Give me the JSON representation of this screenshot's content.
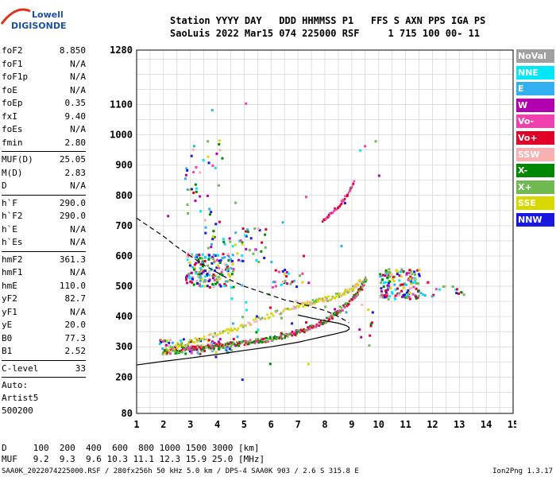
{
  "logo": {
    "line1": "Lowell",
    "line2": "DIGISONDE"
  },
  "header": {
    "line1": "Station YYYY DAY   DDD HHMMSS P1   FFS S AXN PPS IGA PS",
    "line2": "SaoLuis 2022 Mar15 074 225000 RSF     1 715 100 00- 11"
  },
  "params_group1": [
    {
      "label": "foF2",
      "value": "8.850"
    },
    {
      "label": "foF1",
      "value": "N/A"
    },
    {
      "label": "foF1p",
      "value": "N/A"
    },
    {
      "label": "foE",
      "value": "N/A"
    },
    {
      "label": "foEp",
      "value": "0.35"
    },
    {
      "label": "fxI",
      "value": "9.40"
    },
    {
      "label": "foEs",
      "value": "N/A"
    },
    {
      "label": "fmin",
      "value": "2.80"
    }
  ],
  "params_group2": [
    {
      "label": "MUF(D)",
      "value": "25.05"
    },
    {
      "label": "M(D)",
      "value": "2.83"
    },
    {
      "label": "D",
      "value": "N/A"
    }
  ],
  "params_group3": [
    {
      "label": "h`F",
      "value": "290.0"
    },
    {
      "label": "h`F2",
      "value": "290.0"
    },
    {
      "label": "h`E",
      "value": "N/A"
    },
    {
      "label": "h`Es",
      "value": "N/A"
    }
  ],
  "params_group4": [
    {
      "label": "hmF2",
      "value": "361.3"
    },
    {
      "label": "hmF1",
      "value": "N/A"
    },
    {
      "label": "hmE",
      "value": "110.0"
    },
    {
      "label": "yF2",
      "value": "82.7"
    },
    {
      "label": "yF1",
      "value": "N/A"
    },
    {
      "label": "yE",
      "value": "20.0"
    },
    {
      "label": "B0",
      "value": "77.3"
    },
    {
      "label": "B1",
      "value": "2.52"
    }
  ],
  "clevel": {
    "label": "C-level",
    "value": "33"
  },
  "auto_lines": [
    "Auto:",
    "Artist5",
    "500200"
  ],
  "legend": [
    {
      "label": "NoVal",
      "color": "#a0a0a0"
    },
    {
      "label": "NNE",
      "color": "#00e8f8"
    },
    {
      "label": "E",
      "color": "#30b0f0"
    },
    {
      "label": "W",
      "color": "#b000b0"
    },
    {
      "label": "Vo-",
      "color": "#f040b0"
    },
    {
      "label": "Vo+",
      "color": "#e00028"
    },
    {
      "label": "SSW",
      "color": "#f8b0b0"
    },
    {
      "label": "X-",
      "color": "#008800"
    },
    {
      "label": "X+",
      "color": "#70b850"
    },
    {
      "label": "SSE",
      "color": "#d8d800"
    },
    {
      "label": "NNW",
      "color": "#1818e0"
    }
  ],
  "footer": {
    "line1": "D     100  200  400  600  800 1000 1500 3000 [km]",
    "line2": "MUF   9.2  9.3  9.6 10.3 11.1 12.3 15.9 25.0 [MHz]"
  },
  "bottom_line": "SAA0K_2022074225000.RSF / 280fx256h 50 kHz 5.0 km / DPS-4 SAA0K 903 / 2.6 S 315.8 E",
  "version": "Ion2Png 1.3.17",
  "chart_data": {
    "type": "scatter",
    "x_ticks": [
      "1",
      "2",
      "3",
      "4",
      "5",
      "6",
      "7",
      "8",
      "9",
      "10",
      "11",
      "12",
      "13",
      "14",
      "15"
    ],
    "y_ticks": [
      "80",
      "200",
      "300",
      "400",
      "500",
      "600",
      "700",
      "800",
      "900",
      "1000",
      "1100",
      "1280"
    ],
    "xlim": [
      1,
      15
    ],
    "ylim": [
      80,
      1280
    ],
    "grid": true,
    "x_trace": {
      "x": [
        2.0,
        2.5,
        3.0,
        3.5,
        4.0,
        4.5,
        5.0,
        5.5,
        6.0,
        6.5,
        7.0,
        7.5,
        8.0,
        8.5,
        9.0,
        9.3,
        9.5
      ],
      "y": [
        285,
        290,
        298,
        302,
        306,
        310,
        316,
        322,
        330,
        340,
        352,
        368,
        390,
        420,
        460,
        495,
        530
      ]
    },
    "o_trace": {
      "x": [
        2.0,
        3.0,
        4.0,
        5.0,
        6.0,
        7.0,
        7.5,
        8.0,
        8.5,
        9.0,
        9.3
      ],
      "y": [
        290,
        320,
        345,
        375,
        410,
        440,
        450,
        460,
        475,
        495,
        520
      ]
    },
    "oblique_trace": {
      "x": [
        7.9,
        8.2,
        8.5,
        8.8,
        9.1
      ],
      "y": [
        720,
        745,
        770,
        805,
        850
      ]
    },
    "profile_solid": {
      "x": [
        1.0,
        2.0,
        3.0,
        4.0,
        5.0,
        6.0,
        7.0,
        7.5,
        8.0,
        8.5,
        8.8,
        8.9,
        8.9,
        8.8,
        8.5,
        8.0,
        7.5,
        7.0
      ],
      "y": [
        240,
        252,
        263,
        275,
        288,
        300,
        315,
        325,
        335,
        345,
        352,
        358,
        364,
        370,
        378,
        386,
        395,
        405
      ]
    },
    "profile_dashed": {
      "x": [
        1.0,
        1.5,
        2.0,
        2.5,
        3.0,
        3.5,
        4.0,
        4.5,
        5.0,
        5.5,
        6.0,
        6.5,
        7.0,
        7.5,
        8.0,
        8.5,
        8.9
      ],
      "y": [
        725,
        695,
        665,
        630,
        600,
        570,
        545,
        520,
        500,
        485,
        470,
        455,
        445,
        432,
        420,
        400,
        380
      ]
    },
    "clusters": [
      {
        "x": [
          2.8,
          4.6
        ],
        "y": [
          500,
          610
        ],
        "n": 160
      },
      {
        "x": [
          10.0,
          11.5
        ],
        "y": [
          460,
          560
        ],
        "n": 150
      },
      {
        "x": [
          11.5,
          13.2
        ],
        "y": [
          470,
          520
        ],
        "n": 20
      },
      {
        "x": [
          3.5,
          5.8
        ],
        "y": [
          580,
          700
        ],
        "n": 60
      },
      {
        "x": [
          6.0,
          7.2
        ],
        "y": [
          500,
          560
        ],
        "n": 25
      },
      {
        "x": [
          1.8,
          4.5
        ],
        "y": [
          280,
          330
        ],
        "n": 90
      },
      {
        "x": [
          2.8,
          4.2
        ],
        "y": [
          700,
          1000
        ],
        "n": 40
      },
      {
        "x": [
          4.5,
          9.8
        ],
        "y": [
          320,
          470
        ],
        "n": 30
      },
      {
        "x": [
          2.0,
          10.0
        ],
        "y": [
          180,
          1150
        ],
        "n": 30
      }
    ]
  }
}
